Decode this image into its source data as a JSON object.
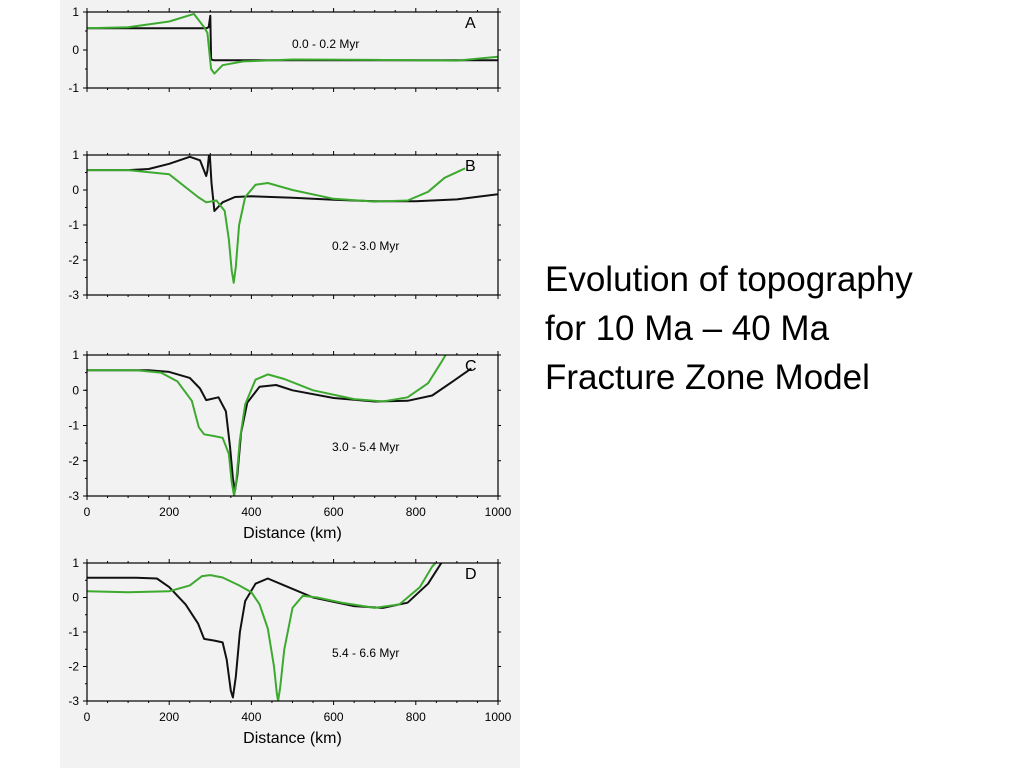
{
  "slide": {
    "title_lines": [
      "Evolution of topography",
      "for 10 Ma – 40 Ma",
      "Fracture Zone Model"
    ]
  },
  "chart_data": [
    {
      "type": "line",
      "panel_label": "A",
      "annotation": "0.0 - 0.2 Myr",
      "xlim": [
        0,
        1000
      ],
      "ylim": [
        -1,
        1
      ],
      "yticks": [
        1,
        0,
        -1
      ],
      "xticks": [],
      "xlabel": "",
      "series": [
        {
          "color": "#111111",
          "points": [
            [
              0,
              0.57
            ],
            [
              290,
              0.57
            ],
            [
              296,
              0.6
            ],
            [
              300,
              0.9
            ],
            [
              302,
              -0.25
            ],
            [
              310,
              -0.27
            ],
            [
              500,
              -0.27
            ],
            [
              700,
              -0.27
            ],
            [
              1000,
              -0.27
            ]
          ]
        },
        {
          "color": "#3daa2f",
          "points": [
            [
              0,
              0.57
            ],
            [
              100,
              0.6
            ],
            [
              200,
              0.75
            ],
            [
              260,
              0.95
            ],
            [
              285,
              0.6
            ],
            [
              293,
              0.45
            ],
            [
              302,
              -0.5
            ],
            [
              310,
              -0.62
            ],
            [
              330,
              -0.4
            ],
            [
              380,
              -0.3
            ],
            [
              500,
              -0.25
            ],
            [
              700,
              -0.26
            ],
            [
              900,
              -0.28
            ],
            [
              1000,
              -0.18
            ]
          ]
        }
      ]
    },
    {
      "type": "line",
      "panel_label": "B",
      "annotation": "0.2 - 3.0 Myr",
      "xlim": [
        0,
        1000
      ],
      "ylim": [
        -3,
        1
      ],
      "yticks": [
        1,
        0,
        -1,
        -2,
        -3
      ],
      "xticks": [],
      "xlabel": "",
      "series": [
        {
          "color": "#111111",
          "points": [
            [
              0,
              0.57
            ],
            [
              100,
              0.57
            ],
            [
              150,
              0.6
            ],
            [
              200,
              0.75
            ],
            [
              250,
              0.95
            ],
            [
              275,
              0.85
            ],
            [
              290,
              0.4
            ],
            [
              293,
              0.55
            ],
            [
              298,
              1.15
            ],
            [
              303,
              0.2
            ],
            [
              310,
              -0.6
            ],
            [
              330,
              -0.35
            ],
            [
              360,
              -0.2
            ],
            [
              400,
              -0.18
            ],
            [
              500,
              -0.22
            ],
            [
              600,
              -0.28
            ],
            [
              700,
              -0.32
            ],
            [
              800,
              -0.32
            ],
            [
              900,
              -0.27
            ],
            [
              1000,
              -0.12
            ]
          ]
        },
        {
          "color": "#3daa2f",
          "points": [
            [
              0,
              0.57
            ],
            [
              100,
              0.57
            ],
            [
              200,
              0.45
            ],
            [
              270,
              -0.2
            ],
            [
              290,
              -0.35
            ],
            [
              315,
              -0.3
            ],
            [
              335,
              -0.6
            ],
            [
              345,
              -1.4
            ],
            [
              352,
              -2.3
            ],
            [
              357,
              -2.65
            ],
            [
              362,
              -2.2
            ],
            [
              370,
              -1.0
            ],
            [
              385,
              -0.2
            ],
            [
              410,
              0.15
            ],
            [
              440,
              0.2
            ],
            [
              500,
              0.0
            ],
            [
              600,
              -0.25
            ],
            [
              700,
              -0.33
            ],
            [
              780,
              -0.3
            ],
            [
              830,
              -0.05
            ],
            [
              870,
              0.35
            ],
            [
              920,
              0.62
            ]
          ]
        }
      ]
    },
    {
      "type": "line",
      "panel_label": "C",
      "annotation": "3.0 - 5.4 Myr",
      "xlim": [
        0,
        1000
      ],
      "ylim": [
        -3,
        1
      ],
      "yticks": [
        1,
        0,
        -1,
        -2,
        -3
      ],
      "xticks": [
        0,
        200,
        400,
        600,
        800,
        1000
      ],
      "xlabel": "Distance (km)",
      "series": [
        {
          "color": "#111111",
          "points": [
            [
              0,
              0.57
            ],
            [
              150,
              0.57
            ],
            [
              200,
              0.52
            ],
            [
              250,
              0.35
            ],
            [
              275,
              0.05
            ],
            [
              290,
              -0.28
            ],
            [
              320,
              -0.2
            ],
            [
              338,
              -0.6
            ],
            [
              348,
              -1.6
            ],
            [
              355,
              -2.5
            ],
            [
              360,
              -2.85
            ],
            [
              366,
              -2.4
            ],
            [
              375,
              -1.2
            ],
            [
              390,
              -0.35
            ],
            [
              420,
              0.1
            ],
            [
              460,
              0.15
            ],
            [
              500,
              0.0
            ],
            [
              600,
              -0.22
            ],
            [
              700,
              -0.32
            ],
            [
              780,
              -0.3
            ],
            [
              840,
              -0.15
            ],
            [
              890,
              0.25
            ],
            [
              935,
              0.62
            ]
          ]
        },
        {
          "color": "#3daa2f",
          "points": [
            [
              0,
              0.57
            ],
            [
              120,
              0.57
            ],
            [
              180,
              0.5
            ],
            [
              220,
              0.25
            ],
            [
              255,
              -0.3
            ],
            [
              272,
              -1.05
            ],
            [
              285,
              -1.25
            ],
            [
              310,
              -1.3
            ],
            [
              330,
              -1.35
            ],
            [
              345,
              -1.8
            ],
            [
              352,
              -2.6
            ],
            [
              358,
              -3.0
            ],
            [
              363,
              -2.6
            ],
            [
              372,
              -1.4
            ],
            [
              385,
              -0.4
            ],
            [
              410,
              0.3
            ],
            [
              440,
              0.45
            ],
            [
              480,
              0.32
            ],
            [
              550,
              0.0
            ],
            [
              650,
              -0.25
            ],
            [
              720,
              -0.32
            ],
            [
              780,
              -0.2
            ],
            [
              830,
              0.2
            ],
            [
              865,
              0.85
            ],
            [
              880,
              1.15
            ]
          ]
        }
      ]
    },
    {
      "type": "line",
      "panel_label": "D",
      "annotation": "5.4 - 6.6 Myr",
      "xlim": [
        0,
        1000
      ],
      "ylim": [
        -3,
        1
      ],
      "yticks": [
        1,
        0,
        -1,
        -2,
        -3
      ],
      "xticks": [
        0,
        200,
        400,
        600,
        800,
        1000
      ],
      "xlabel": "Distance (km)",
      "series": [
        {
          "color": "#111111",
          "points": [
            [
              0,
              0.57
            ],
            [
              120,
              0.57
            ],
            [
              170,
              0.55
            ],
            [
              200,
              0.3
            ],
            [
              240,
              -0.2
            ],
            [
              270,
              -0.75
            ],
            [
              285,
              -1.2
            ],
            [
              310,
              -1.25
            ],
            [
              330,
              -1.3
            ],
            [
              340,
              -1.8
            ],
            [
              350,
              -2.7
            ],
            [
              355,
              -2.9
            ],
            [
              362,
              -2.3
            ],
            [
              372,
              -1.0
            ],
            [
              385,
              -0.1
            ],
            [
              410,
              0.4
            ],
            [
              440,
              0.55
            ],
            [
              480,
              0.35
            ],
            [
              550,
              0.0
            ],
            [
              650,
              -0.25
            ],
            [
              720,
              -0.3
            ],
            [
              780,
              -0.15
            ],
            [
              830,
              0.4
            ],
            [
              870,
              1.15
            ]
          ]
        },
        {
          "color": "#3daa2f",
          "points": [
            [
              0,
              0.18
            ],
            [
              100,
              0.15
            ],
            [
              200,
              0.18
            ],
            [
              250,
              0.35
            ],
            [
              280,
              0.62
            ],
            [
              300,
              0.65
            ],
            [
              330,
              0.58
            ],
            [
              370,
              0.35
            ],
            [
              400,
              0.15
            ],
            [
              420,
              -0.2
            ],
            [
              440,
              -0.9
            ],
            [
              455,
              -2.0
            ],
            [
              462,
              -2.8
            ],
            [
              465,
              -3.0
            ],
            [
              470,
              -2.6
            ],
            [
              480,
              -1.5
            ],
            [
              500,
              -0.3
            ],
            [
              525,
              0.05
            ],
            [
              560,
              0.0
            ],
            [
              620,
              -0.15
            ],
            [
              700,
              -0.3
            ],
            [
              760,
              -0.2
            ],
            [
              810,
              0.3
            ],
            [
              840,
              0.9
            ],
            [
              860,
              1.15
            ]
          ]
        }
      ]
    }
  ]
}
